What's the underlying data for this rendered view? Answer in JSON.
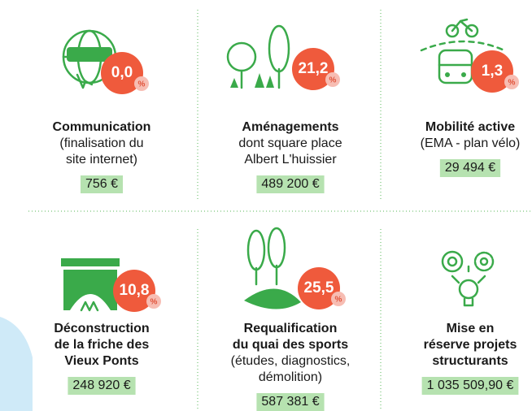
{
  "items": [
    {
      "percent": "0,0",
      "percent_sign": "%",
      "title": [
        "Communication"
      ],
      "subtitle": [
        "(finalisation du",
        "site internet)"
      ],
      "amount": "756 €"
    },
    {
      "percent": "21,2",
      "percent_sign": "%",
      "title": [
        "Aménagements"
      ],
      "subtitle": [
        "dont square place",
        "Albert L'huissier"
      ],
      "amount": "489 200 €"
    },
    {
      "percent": "1,3",
      "percent_sign": "%",
      "title": [
        "Mobilité active"
      ],
      "subtitle": [
        "(EMA - plan vélo)"
      ],
      "amount": "29 494 €"
    },
    {
      "percent": "10,8",
      "percent_sign": "%",
      "title": [
        "Déconstruction",
        "de la friche des",
        "Vieux Ponts"
      ],
      "subtitle": [],
      "amount": "248 920 €"
    },
    {
      "percent": "25,5",
      "percent_sign": "%",
      "title": [
        "Requalification",
        "du quai des sports"
      ],
      "subtitle": [
        "(études, diagnostics,",
        "démolition)"
      ],
      "amount": "587 381 €"
    },
    {
      "title": [
        "Mise en",
        "réserve projets",
        "structurants"
      ],
      "subtitle": [],
      "amount": "1 035 509,90 €"
    }
  ]
}
